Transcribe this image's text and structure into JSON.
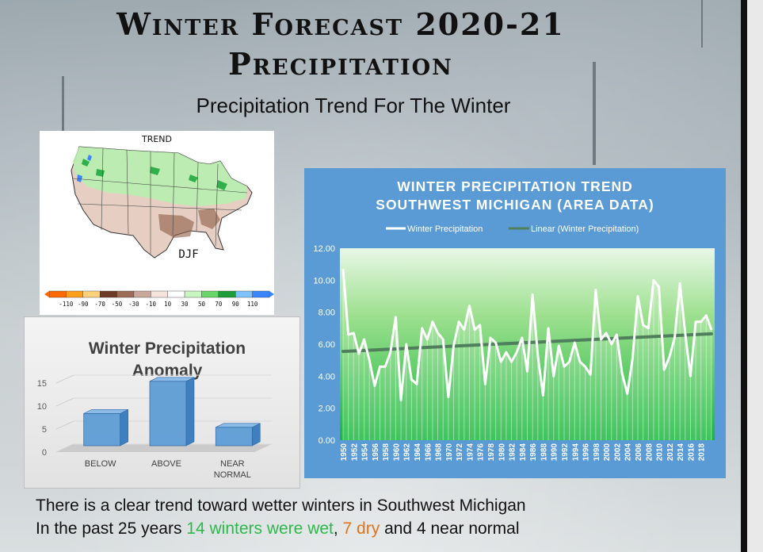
{
  "title_line1": "Winter Forecast 2020-21",
  "title_line2": "Precipitation",
  "subtitle": "Precipitation Trend For The Winter",
  "map": {
    "label_top": "TREND",
    "label_season": "DJF",
    "legend_ticks": [
      "-110",
      "-90",
      "-70",
      "-50",
      "-30",
      "-10",
      "10",
      "30",
      "50",
      "70",
      "90",
      "110"
    ],
    "legend_colors": [
      "#ff6a00",
      "#ff9e1a",
      "#ffd27a",
      "#6b3b26",
      "#9c6b55",
      "#c9a79a",
      "#f6e3dc",
      "#ffffff",
      "#c8f5c0",
      "#6ad66a",
      "#1e9e3a",
      "#7ec2ff",
      "#3a86ff"
    ]
  },
  "chart_data": [
    {
      "type": "bar",
      "title": "Winter Precipitation Anomaly",
      "categories": [
        "BELOW",
        "ABOVE",
        "NEAR NORMAL"
      ],
      "values": [
        7,
        14,
        4
      ],
      "ylim": [
        0,
        15
      ],
      "yticks": [
        0,
        5,
        10,
        15
      ],
      "xlabel": "",
      "ylabel": "",
      "color": "#5b9bd5"
    },
    {
      "type": "line",
      "title": "WINTER PRECIPITATION TREND SOUTHWEST MICHIGAN (AREA DATA)",
      "title_line1": "WINTER PRECIPITATION TREND",
      "title_line2": "SOUTHWEST MICHIGAN (AREA DATA)",
      "legend": [
        "Winter Precipitation",
        "Linear (Winter Precipitation)"
      ],
      "legend_position": "top",
      "x_start": 1950,
      "xtick_labels": [
        "1950",
        "1952",
        "1954",
        "1956",
        "1958",
        "1960",
        "1962",
        "1964",
        "1966",
        "1968",
        "1970",
        "1972",
        "1974",
        "1976",
        "1978",
        "1980",
        "1982",
        "1984",
        "1986",
        "1988",
        "1990",
        "1992",
        "1994",
        "1996",
        "1998",
        "2000",
        "2002",
        "2004",
        "2006",
        "2008",
        "2010",
        "2012",
        "2014",
        "2016",
        "2018"
      ],
      "ytick_labels": [
        "0.00",
        "2.00",
        "4.00",
        "6.00",
        "8.00",
        "10.00",
        "12.00"
      ],
      "ylim": [
        0,
        12
      ],
      "series": [
        {
          "name": "Winter Precipitation",
          "values": [
            10.7,
            6.6,
            6.7,
            5.4,
            6.3,
            5.0,
            3.4,
            4.6,
            4.6,
            5.5,
            7.7,
            2.5,
            6.0,
            3.8,
            3.5,
            7.0,
            6.3,
            7.4,
            6.7,
            6.3,
            2.7,
            5.9,
            7.4,
            6.9,
            8.4,
            6.9,
            7.2,
            3.5,
            6.4,
            6.1,
            4.9,
            5.5,
            4.9,
            5.5,
            6.4,
            4.3,
            9.1,
            5.3,
            2.8,
            7.0,
            4.0,
            5.9,
            4.6,
            4.9,
            6.1,
            4.9,
            4.6,
            4.1,
            9.4,
            6.3,
            6.7,
            6.0,
            6.6,
            4.2,
            2.9,
            5.1,
            9.0,
            7.2,
            7.0,
            10.0,
            9.6,
            4.4,
            5.2,
            6.4,
            9.8,
            6.7,
            4.0,
            7.4,
            7.4,
            7.8,
            6.9
          ]
        },
        {
          "name": "Linear (Winter Precipitation)",
          "values_start_end": [
            5.55,
            6.65
          ]
        }
      ]
    }
  ],
  "bottom": {
    "line1": "There is a clear trend toward wetter winters in Southwest Michigan",
    "line2_prefix": "In the past 25 years ",
    "line2_wet": "14 winters were wet",
    "line2_sep": ", ",
    "line2_dry": "7 dry",
    "line2_suffix": " and 4 near normal"
  }
}
